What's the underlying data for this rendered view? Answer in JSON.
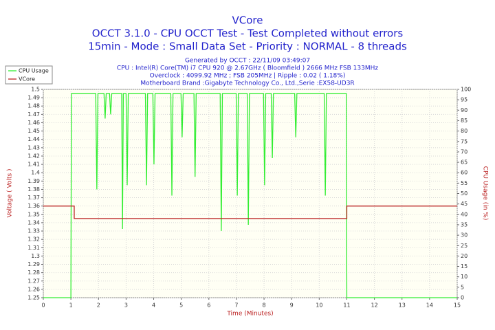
{
  "chart_data": {
    "type": "line",
    "title": "VCore",
    "subtitle": [
      "OCCT 3.1.0 - CPU OCCT Test - Test Completed without errors",
      "15min - Mode : Small Data Set - Priority : NORMAL - 8 threads"
    ],
    "info": [
      "Generated by OCCT : 22/11/09 03:49:07",
      "CPU : Intel(R) Core(TM) i7 CPU 920 @ 2.67GHz ( Bloomfield ) 2666 MHz FSB 133MHz",
      "Overclock : 4099.92 MHz ; FSB 205MHz | Ripple : 0.02 ( 1.18%)",
      "Motherboard Brand :Gigabyte Technology Co., Ltd.,Serie :EX58-UD3R"
    ],
    "xlabel": "Time (Minutes)",
    "ylabel": "Voltage ( Volts )",
    "y2label": "CPU Usage (in %)",
    "xlim": [
      0,
      15
    ],
    "xticks": [
      0,
      1,
      2,
      3,
      4,
      5,
      6,
      7,
      8,
      9,
      10,
      11,
      12,
      13,
      14,
      15
    ],
    "ylim": [
      1.25,
      1.5
    ],
    "yticks": [
      1.25,
      1.26,
      1.27,
      1.28,
      1.29,
      1.3,
      1.31,
      1.32,
      1.33,
      1.34,
      1.35,
      1.36,
      1.37,
      1.38,
      1.39,
      1.4,
      1.41,
      1.42,
      1.43,
      1.44,
      1.45,
      1.46,
      1.47,
      1.48,
      1.49,
      1.5
    ],
    "y2lim": [
      0,
      100
    ],
    "y2ticks": [
      0,
      5,
      10,
      15,
      20,
      25,
      30,
      35,
      40,
      45,
      50,
      55,
      60,
      65,
      70,
      75,
      80,
      85,
      90,
      95,
      100
    ],
    "grid": true,
    "legend": "upper left",
    "series": [
      {
        "name": "CPU Usage",
        "color": "#33ee33",
        "axis": "y2",
        "x": [
          0,
          1.0,
          1.02,
          1.9,
          1.94,
          1.98,
          2.2,
          2.24,
          2.28,
          2.4,
          2.44,
          2.48,
          2.84,
          2.87,
          2.9,
          3.0,
          3.04,
          3.08,
          3.7,
          3.74,
          3.78,
          3.97,
          4.01,
          4.05,
          4.62,
          4.66,
          4.7,
          4.99,
          5.03,
          5.07,
          5.46,
          5.5,
          5.54,
          6.41,
          6.45,
          6.49,
          6.99,
          7.03,
          7.07,
          7.39,
          7.43,
          7.47,
          7.98,
          8.02,
          8.06,
          8.26,
          8.3,
          8.34,
          9.11,
          9.15,
          9.19,
          10.18,
          10.22,
          10.26,
          10.98,
          11.0,
          15
        ],
        "values": [
          0,
          0,
          98,
          98,
          52,
          98,
          98,
          86,
          98,
          98,
          88,
          98,
          98,
          33,
          98,
          98,
          54,
          98,
          98,
          54,
          98,
          98,
          64,
          98,
          98,
          49,
          98,
          98,
          77,
          98,
          98,
          58,
          98,
          98,
          32,
          98,
          98,
          49,
          98,
          98,
          35,
          98,
          98,
          54,
          98,
          98,
          67,
          98,
          98,
          77,
          98,
          98,
          49,
          98,
          98,
          0,
          0
        ]
      },
      {
        "name": "VCore",
        "color": "#bb2222",
        "x": [
          0,
          1.12,
          1.12,
          11.0,
          11.0,
          15
        ],
        "values": [
          1.36,
          1.36,
          1.345,
          1.345,
          1.36,
          1.36
        ]
      }
    ]
  }
}
